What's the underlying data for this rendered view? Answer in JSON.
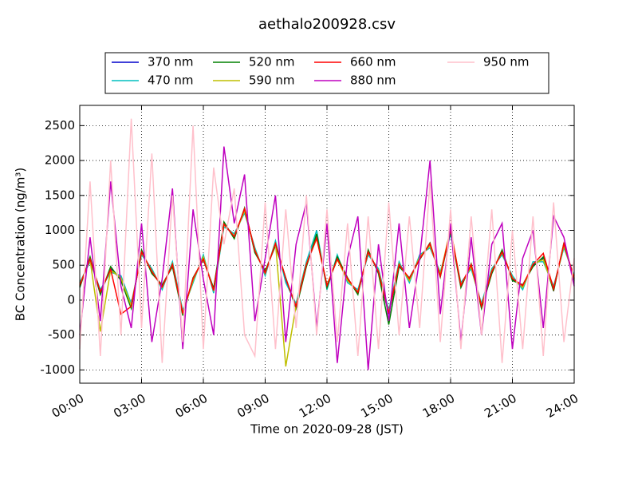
{
  "chart_data": {
    "type": "line",
    "title": "aethalo200928.csv",
    "xlabel": "Time on 2020-09-28 (JST)",
    "ylabel": "BC Concentration (ng/m³)",
    "x": [
      0,
      0.5,
      1,
      1.5,
      2,
      2.5,
      3,
      3.5,
      4,
      4.5,
      5,
      5.5,
      6,
      6.5,
      7,
      7.5,
      8,
      8.5,
      9,
      9.5,
      10,
      10.5,
      11,
      11.5,
      12,
      12.5,
      13,
      13.5,
      14,
      14.5,
      15,
      15.5,
      16,
      16.5,
      17,
      17.5,
      18,
      18.5,
      19,
      19.5,
      20,
      20.5,
      21,
      21.5,
      22,
      22.5,
      23,
      23.5,
      24
    ],
    "xlim": [
      0,
      24
    ],
    "xticks": [
      {
        "value": 0,
        "label": "00:00"
      },
      {
        "value": 3,
        "label": "03:00"
      },
      {
        "value": 6,
        "label": "06:00"
      },
      {
        "value": 9,
        "label": "09:00"
      },
      {
        "value": 12,
        "label": "12:00"
      },
      {
        "value": 15,
        "label": "15:00"
      },
      {
        "value": 18,
        "label": "18:00"
      },
      {
        "value": 21,
        "label": "21:00"
      },
      {
        "value": 24,
        "label": "24:00"
      }
    ],
    "ylim": [
      -1190,
      2790
    ],
    "yticks": [
      -1000,
      -500,
      0,
      500,
      1000,
      1500,
      2000,
      2500
    ],
    "grid": true,
    "legend": "top",
    "series": [
      {
        "name": "370 nm",
        "color": "#0000cc",
        "values": [
          200,
          600,
          100,
          450,
          300,
          -100,
          700,
          400,
          200,
          500,
          -200,
          300,
          600,
          150,
          1100,
          900,
          1300,
          700,
          400,
          800,
          300,
          -100,
          500,
          900,
          200,
          600,
          300,
          100,
          700,
          400,
          -200,
          500,
          300,
          600,
          800,
          350,
          1000,
          200,
          500,
          -100,
          400,
          700,
          300,
          200,
          500,
          600,
          150,
          800,
          300
        ]
      },
      {
        "name": "470 nm",
        "color": "#00bfbf",
        "values": [
          250,
          550,
          150,
          400,
          350,
          -50,
          650,
          450,
          150,
          550,
          -150,
          250,
          650,
          100,
          1050,
          950,
          1250,
          750,
          350,
          850,
          250,
          -50,
          550,
          1000,
          150,
          650,
          250,
          150,
          650,
          450,
          -150,
          550,
          250,
          650,
          750,
          400,
          950,
          250,
          450,
          -50,
          450,
          650,
          350,
          150,
          550,
          550,
          200,
          750,
          350
        ]
      },
      {
        "name": "520 nm",
        "color": "#008000",
        "values": [
          180,
          620,
          80,
          480,
          280,
          -120,
          720,
          380,
          220,
          480,
          -220,
          320,
          580,
          170,
          1120,
          880,
          1320,
          680,
          420,
          780,
          320,
          -120,
          480,
          950,
          180,
          620,
          320,
          80,
          720,
          380,
          -350,
          480,
          320,
          580,
          820,
          330,
          980,
          180,
          520,
          -120,
          380,
          720,
          280,
          220,
          480,
          620,
          130,
          820,
          280
        ]
      },
      {
        "name": "590 nm",
        "color": "#bfbf00",
        "values": [
          220,
          580,
          -450,
          430,
          320,
          -80,
          680,
          420,
          180,
          520,
          -180,
          280,
          620,
          130,
          1080,
          920,
          1280,
          720,
          380,
          820,
          -950,
          -80,
          520,
          880,
          220,
          580,
          280,
          120,
          680,
          420,
          -180,
          520,
          280,
          620,
          780,
          370,
          1020,
          220,
          480,
          -80,
          420,
          680,
          320,
          180,
          520,
          580,
          170,
          780,
          320
        ]
      },
      {
        "name": "660 nm",
        "color": "#ff0000",
        "values": [
          210,
          590,
          120,
          440,
          -200,
          -90,
          690,
          410,
          190,
          510,
          -190,
          310,
          590,
          140,
          1090,
          910,
          1310,
          710,
          390,
          810,
          310,
          -90,
          510,
          890,
          210,
          590,
          310,
          110,
          690,
          410,
          -190,
          510,
          310,
          590,
          810,
          340,
          1010,
          210,
          510,
          -90,
          410,
          690,
          310,
          210,
          510,
          670,
          160,
          810,
          310
        ]
      },
      {
        "name": "880 nm",
        "color": "#bf00bf",
        "values": [
          -500,
          900,
          -300,
          1700,
          200,
          -400,
          1100,
          -600,
          300,
          1600,
          -700,
          1300,
          300,
          -500,
          2200,
          1100,
          1800,
          -300,
          600,
          1500,
          -600,
          800,
          1400,
          -400,
          1100,
          -900,
          600,
          1200,
          -1000,
          800,
          -300,
          1100,
          -400,
          600,
          2000,
          -200,
          1100,
          -600,
          900,
          -500,
          800,
          1100,
          -700,
          600,
          1000,
          -400,
          1200,
          900,
          200
        ]
      },
      {
        "name": "950 nm",
        "color": "#ffc0cb",
        "values": [
          -700,
          1700,
          -800,
          2000,
          -500,
          2600,
          -400,
          2100,
          -900,
          1500,
          -600,
          2500,
          -700,
          1900,
          800,
          1600,
          -500,
          -800,
          1400,
          -700,
          1300,
          -400,
          1500,
          -500,
          1300,
          -600,
          1100,
          -800,
          1200,
          -700,
          1400,
          -500,
          1200,
          -400,
          1700,
          -600,
          1300,
          -700,
          1200,
          -500,
          1300,
          -900,
          1000,
          -700,
          1200,
          -800,
          1400,
          -600,
          600
        ]
      }
    ]
  }
}
